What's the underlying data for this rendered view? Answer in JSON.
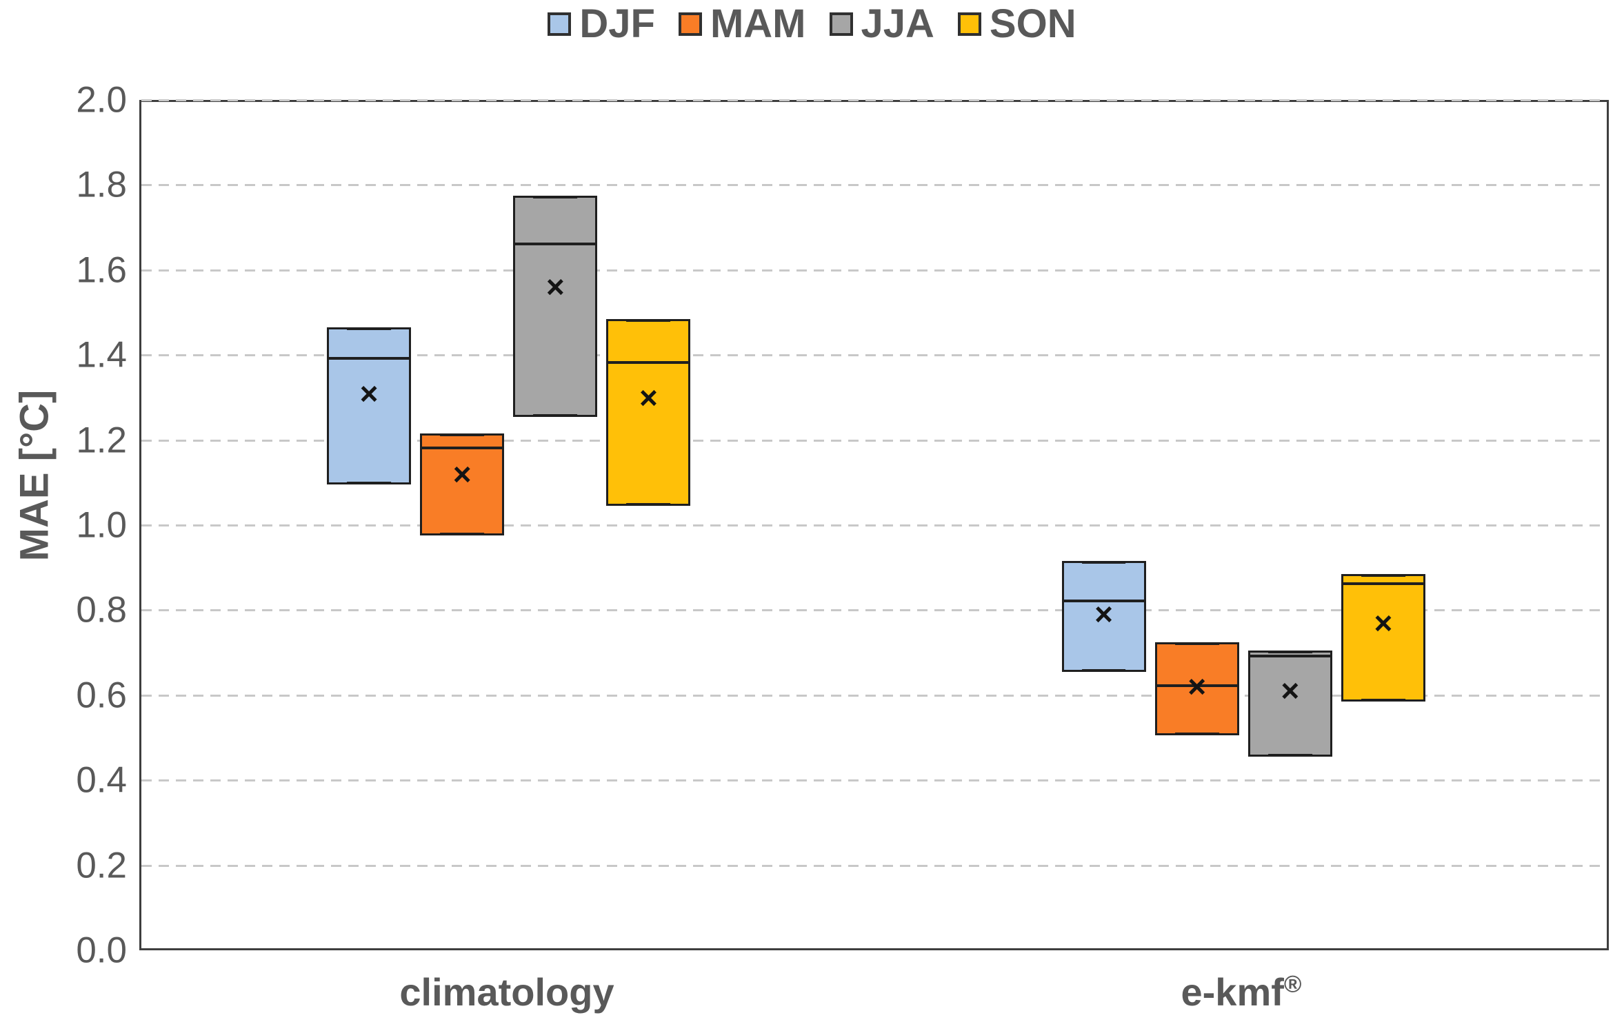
{
  "chart_data": {
    "type": "box",
    "ylabel": "MAE [°C]",
    "ylim": [
      0.0,
      2.0
    ],
    "yticks": [
      "0.0",
      "0.2",
      "0.4",
      "0.6",
      "0.8",
      "1.0",
      "1.2",
      "1.4",
      "1.6",
      "1.8",
      "2.0"
    ],
    "grid": "horizontal-dashed",
    "legend_position": "top-center",
    "mean_marker_glyph": "×",
    "categories": [
      {
        "label": "climatology",
        "sup": ""
      },
      {
        "label": "e-kmf",
        "sup": "®"
      }
    ],
    "colors": {
      "DJF": "#A9C6E8",
      "MAM": "#F97D26",
      "JJA": "#A6A6A6",
      "SON": "#FFC008",
      "box_border": "#1f1f1f",
      "axis_border": "#3f3f3f",
      "gridline": "#c8c8c8",
      "text": "#595959"
    },
    "series": [
      {
        "name": "DJF",
        "color": "#A9C6E8",
        "values": [
          {
            "category": "climatology",
            "q1": 1.1,
            "median": 1.4,
            "q3": 1.47,
            "mean": 1.32
          },
          {
            "category": "e-kmf",
            "q1": 0.66,
            "median": 0.83,
            "q3": 0.92,
            "mean": 0.8
          }
        ]
      },
      {
        "name": "MAM",
        "color": "#F97D26",
        "values": [
          {
            "category": "climatology",
            "q1": 0.98,
            "median": 1.19,
            "q3": 1.22,
            "mean": 1.13
          },
          {
            "category": "e-kmf",
            "q1": 0.51,
            "median": 0.63,
            "q3": 0.73,
            "mean": 0.63
          }
        ]
      },
      {
        "name": "JJA",
        "color": "#A6A6A6",
        "values": [
          {
            "category": "climatology",
            "q1": 1.26,
            "median": 1.67,
            "q3": 1.78,
            "mean": 1.57
          },
          {
            "category": "e-kmf",
            "q1": 0.46,
            "median": 0.7,
            "q3": 0.71,
            "mean": 0.62
          }
        ]
      },
      {
        "name": "SON",
        "color": "#FFC008",
        "values": [
          {
            "category": "climatology",
            "q1": 1.05,
            "median": 1.39,
            "q3": 1.49,
            "mean": 1.31
          },
          {
            "category": "e-kmf",
            "q1": 0.59,
            "median": 0.87,
            "q3": 0.89,
            "mean": 0.78
          }
        ]
      }
    ]
  }
}
